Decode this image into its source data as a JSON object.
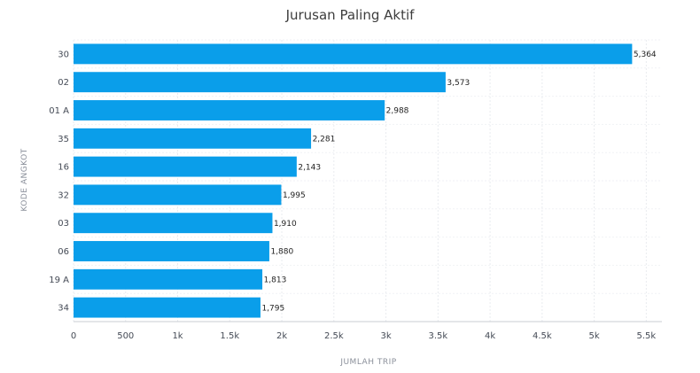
{
  "chart_data": {
    "type": "bar",
    "orientation": "horizontal",
    "title": "Jurusan Paling Aktif",
    "xlabel": "JUMLAH TRIP",
    "ylabel": "KODE ANGKOT",
    "categories": [
      "30",
      "02",
      "01A",
      "35",
      "16",
      "32",
      "03",
      "06",
      "19A",
      "34"
    ],
    "category_labels": [
      "30",
      "02",
      "01 A",
      "35",
      "16",
      "32",
      "03",
      "06",
      "19 A",
      "34"
    ],
    "values": [
      5364,
      3573,
      2988,
      2281,
      2143,
      1995,
      1910,
      1880,
      1813,
      1795
    ],
    "value_labels": [
      "5,364",
      "3,573",
      "2,988",
      "2,281",
      "2,143",
      "1,995",
      "1,910",
      "1,880",
      "1,813",
      "1,795"
    ],
    "xlim": [
      0,
      5650
    ],
    "x_ticks": [
      0,
      500,
      1000,
      1500,
      2000,
      2500,
      3000,
      3500,
      4000,
      4500,
      5000,
      5500
    ],
    "x_tick_labels": [
      "0",
      "500",
      "1k",
      "1.5k",
      "2k",
      "2.5k",
      "3k",
      "3.5k",
      "4k",
      "4.5k",
      "5k",
      "5.5k"
    ],
    "grid": true,
    "legend": "none",
    "bar_color": "#0a9eea"
  }
}
